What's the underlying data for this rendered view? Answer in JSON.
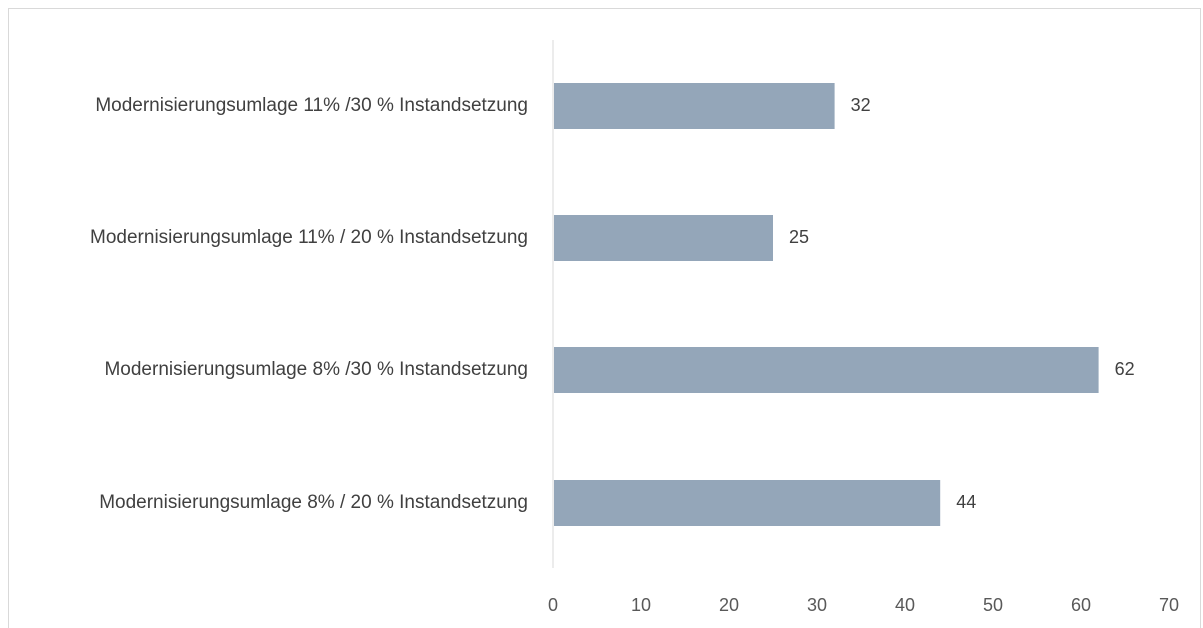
{
  "chart_data": {
    "type": "bar",
    "orientation": "horizontal",
    "categories": [
      "Modernisierungsumlage 11% /30 % Instandsetzung",
      "Modernisierungsumlage 11% / 20 % Instandsetzung",
      "Modernisierungsumlage 8% /30 % Instandsetzung",
      "Modernisierungsumlage 8% / 20 % Instandsetzung"
    ],
    "values": [
      32,
      25,
      62,
      44
    ],
    "xlim": [
      0,
      70
    ],
    "xticks": [
      0,
      10,
      20,
      30,
      40,
      50,
      60,
      70
    ],
    "title": "",
    "xlabel": "",
    "ylabel": "",
    "grid": false,
    "bar_color": "#94a6b9",
    "axis_color": "#d9d9d9"
  }
}
